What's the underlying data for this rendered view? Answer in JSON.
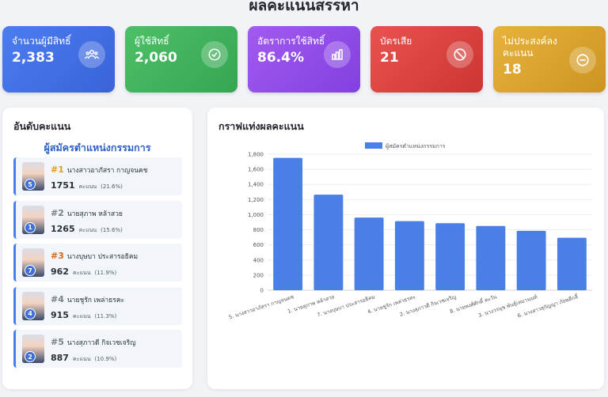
{
  "page": {
    "title": "ผลคะแนนสรรหา"
  },
  "stats": [
    {
      "label": "จำนวนผู้มีสิทธิ์",
      "value": "2,383",
      "icon": "users-icon"
    },
    {
      "label": "ผู้ใช้สิทธิ์",
      "value": "2,060",
      "icon": "check-circle-icon"
    },
    {
      "label": "อัตราการใช้สิทธิ์",
      "value": "86.4%",
      "icon": "bar-chart-icon"
    },
    {
      "label": "บัตรเสีย",
      "value": "21",
      "icon": "ban-icon"
    },
    {
      "label": "ไม่ประสงค์ลงคะแนน",
      "value": "18",
      "icon": "minus-circle-icon"
    }
  ],
  "ranking": {
    "title": "อันดับคะแนน",
    "subtitle": "ผู้สมัครตำแหน่งกรรมการ",
    "vote_label": "คะแนน",
    "items": [
      {
        "rank": "#1",
        "number": "5",
        "name": "นางสาวอาภัสรา กาญจนคช",
        "votes": "1751",
        "percent": "(21.6%)",
        "color": "#d9a21b"
      },
      {
        "rank": "#2",
        "number": "1",
        "name": "นายสุภาพ หล้าสวย",
        "votes": "1265",
        "percent": "(15.6%)",
        "color": "#7b8088"
      },
      {
        "rank": "#3",
        "number": "7",
        "name": "นางบุษบา ประสารอธิคม",
        "votes": "962",
        "percent": "(11.9%)",
        "color": "#d2691e"
      },
      {
        "rank": "#4",
        "number": "4",
        "name": "นายชูรัก เพล่าธรคะ",
        "votes": "915",
        "percent": "(11.3%)",
        "color": "#7b8088"
      },
      {
        "rank": "#5",
        "number": "2",
        "name": "นางสุภาวดี กิจเวชเจริญ",
        "votes": "887",
        "percent": "(10.9%)",
        "color": "#7b8088"
      }
    ]
  },
  "chart_panel": {
    "title": "กราฟแท่งผลคะแนน"
  },
  "chart_data": {
    "type": "bar",
    "title": "",
    "legend": "ผู้สมัครตำแหน่งกรรมการ",
    "legend_position": "top-center",
    "categories": [
      "5. นางสาวอาภัสรา กาญจนคช",
      "1. นายสุภาพ หล้าสวย",
      "7. นางบุษบา ประสารอธิคม",
      "4. นายชูรัก เพล่าธรคะ",
      "2. นางสุภาวดี กิจเวชเจริญ",
      "8. นายพงศ์ศักดิ์ ตะวัน",
      "3. นางวรนุช พันธุ์เหมานนท์",
      "6. นางสาวสุกัญญา ภัยพลีกลี้"
    ],
    "values": [
      1751,
      1265,
      962,
      915,
      887,
      850,
      786,
      695
    ],
    "ylim": [
      0,
      1800
    ],
    "yticks": [
      "0",
      "200",
      "400",
      "600",
      "800",
      "1,000",
      "1,200",
      "1,400",
      "1,600",
      "1,800"
    ],
    "bar_color": "#4a7fe6",
    "grid": true
  }
}
